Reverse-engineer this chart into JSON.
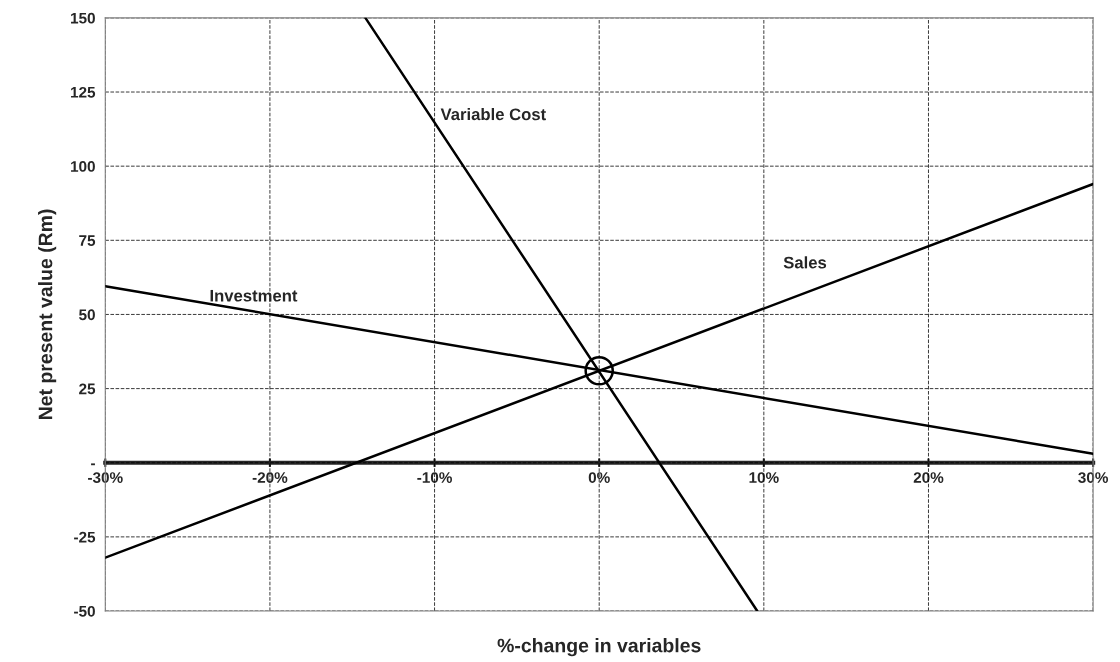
{
  "chart_data": {
    "type": "line",
    "xlabel": "%-change in variables",
    "ylabel": "Net present value (Rm)",
    "xlim": [
      -30,
      30
    ],
    "ylim": [
      -50,
      150
    ],
    "xticks": [
      {
        "value": -30,
        "label": "-30%"
      },
      {
        "value": -20,
        "label": "-20%"
      },
      {
        "value": -10,
        "label": "-10%"
      },
      {
        "value": 0,
        "label": "0%"
      },
      {
        "value": 10,
        "label": "10%"
      },
      {
        "value": 20,
        "label": "20%"
      },
      {
        "value": 30,
        "label": "30%"
      }
    ],
    "yticks": [
      -50,
      -25,
      {
        "value": 0,
        "label": "-"
      },
      25,
      50,
      75,
      100,
      125,
      150
    ],
    "grid": true,
    "line_style": "solid",
    "series": [
      {
        "name": "Investment",
        "color": "#000000",
        "x": [
          -30,
          30
        ],
        "values": [
          59.5,
          3
        ]
      },
      {
        "name": "Variable Cost",
        "color": "#000000",
        "x": [
          -14.2,
          9.6
        ],
        "values": [
          150,
          -50
        ]
      },
      {
        "name": "Sales",
        "color": "#000000",
        "x": [
          -30,
          30
        ],
        "values": [
          -32,
          94
        ]
      },
      {
        "type": "scatter",
        "color": "#000000",
        "x": [
          0
        ],
        "values": [
          31
        ],
        "marker": "circle"
      }
    ]
  }
}
